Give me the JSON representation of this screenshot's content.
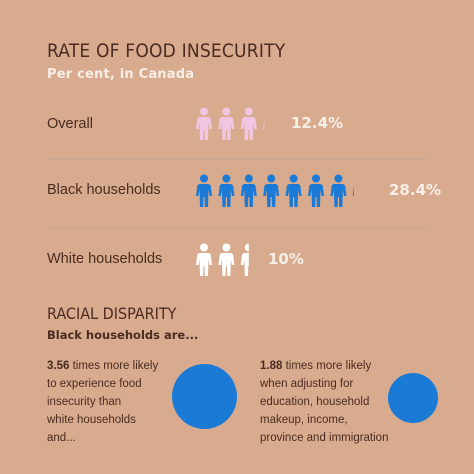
{
  "header": {
    "title": "RATE OF FOOD INSECURITY",
    "subtitle": "Per cent, in Canada"
  },
  "rows": [
    {
      "label": "Overall",
      "value": "12.4%",
      "icon_color": "#f2c6e2",
      "percent": 12.4
    },
    {
      "label": "Black households",
      "value": "28.4%",
      "icon_color": "#1a7ad6",
      "percent": 28.4
    },
    {
      "label": "White households",
      "value": "10%",
      "icon_color": "#ffffff",
      "percent": 10
    }
  ],
  "disparity": {
    "title": "RACIAL DISPARITY",
    "subtitle": "Black households are...",
    "stats": [
      {
        "multiplier": "3.56",
        "text": " times more likely\n to experience food\ninsecurity than\nwhite households\nand...",
        "circle_color": "#1a7ad6"
      },
      {
        "multiplier": "1.88",
        "text": " times more likely\nwhen adjusting for\neducation, household\nmakeup, income,\nprovince and immigration",
        "circle_color": "#1a7ad6"
      }
    ]
  },
  "colors": {
    "background": "#d9ab8e",
    "text": "#4a2b22",
    "accent": "#1a7ad6",
    "highlight": "#f6efe8"
  },
  "icons": {
    "person": "person-icon"
  }
}
